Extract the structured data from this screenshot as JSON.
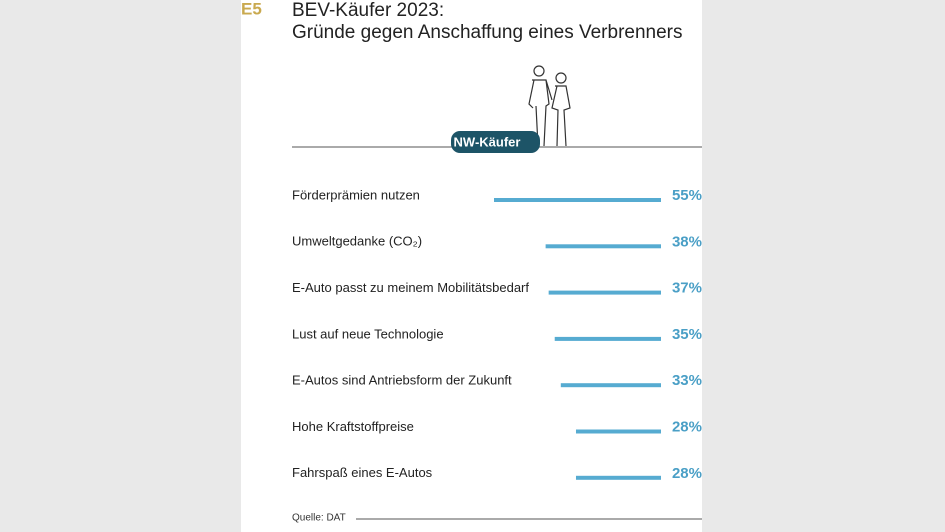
{
  "chart_data": {
    "type": "bar",
    "orientation": "horizontal",
    "tag": "E5",
    "title": "BEV-Käufer 2023:",
    "subtitle": "Gründe gegen Anschaffung eines Verbrenners",
    "badge": "NW-Käufer",
    "categories": [
      "Förderprämien nutzen",
      "Umweltgedanke (CO₂)",
      "E-Auto passt zu meinem Mobilitätsbedarf",
      "Lust auf neue Technologie",
      "E-Autos sind Antriebsform der Zukunft",
      "Hohe Kraftstoffpreise",
      "Fahrspaß eines E-Autos"
    ],
    "values": [
      55,
      38,
      37,
      35,
      33,
      28,
      28
    ],
    "value_labels": [
      "55%",
      "38%",
      "37%",
      "35%",
      "33%",
      "28%",
      "28%"
    ],
    "color": "#56abd1",
    "source": "Quelle: DAT"
  }
}
